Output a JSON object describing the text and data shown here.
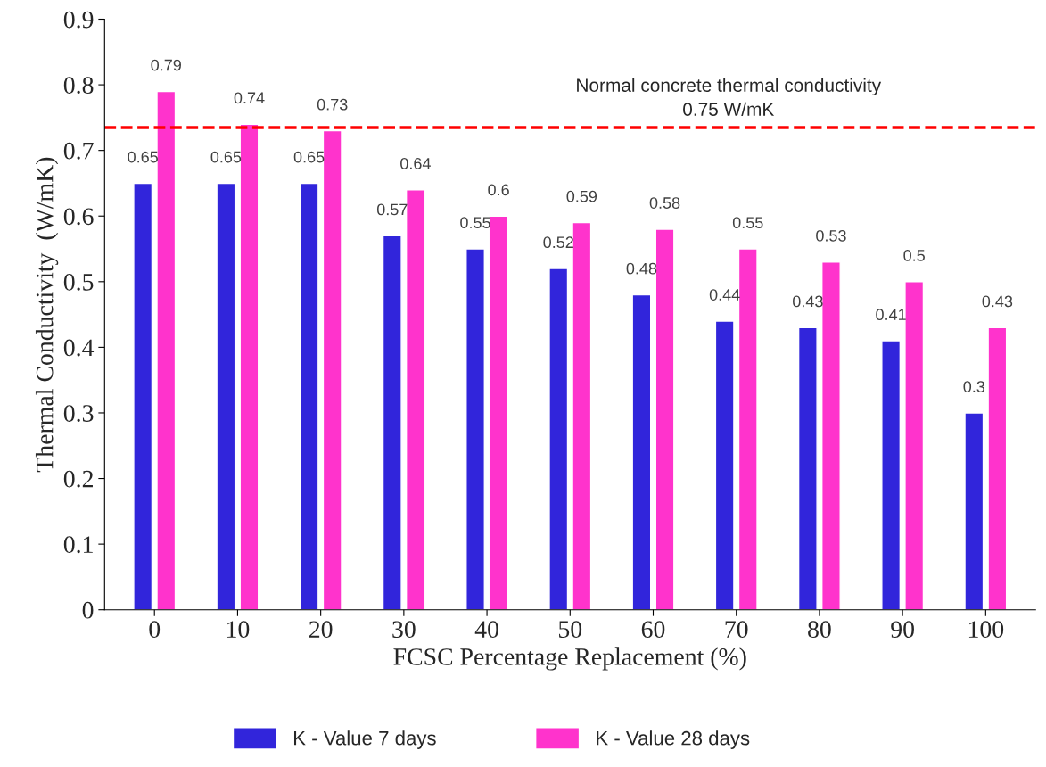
{
  "chart_data": {
    "type": "bar",
    "categories": [
      "0",
      "10",
      "20",
      "30",
      "40",
      "50",
      "60",
      "70",
      "80",
      "90",
      "100"
    ],
    "xlabel": "FCSC Percentage Replacement (%)",
    "ylabel": "Thermal Conductivity  (W/mK)",
    "series": [
      {
        "name": "K - Value 7 days",
        "color": "#3125db",
        "values": [
          0.65,
          0.65,
          0.65,
          0.57,
          0.55,
          0.52,
          0.48,
          0.44,
          0.43,
          0.41,
          0.3
        ]
      },
      {
        "name": "K - Value 28 days",
        "color": "#ff33cc",
        "values": [
          0.79,
          0.74,
          0.73,
          0.64,
          0.6,
          0.59,
          0.58,
          0.55,
          0.53,
          0.5,
          0.43
        ]
      }
    ],
    "ylim": [
      0,
      0.9
    ],
    "yticks": [
      0,
      0.1,
      0.2,
      0.3,
      0.4,
      0.5,
      0.6,
      0.7,
      0.8,
      0.9
    ],
    "ref_lines": [
      {
        "axis": "y",
        "value": 0.735,
        "label": "Normal concrete thermal conductivity\n0.75 W/mK",
        "color": "#ff0000",
        "line_style": "dashed"
      }
    ],
    "data_labels": true,
    "grid": false,
    "legend": "bottom"
  }
}
